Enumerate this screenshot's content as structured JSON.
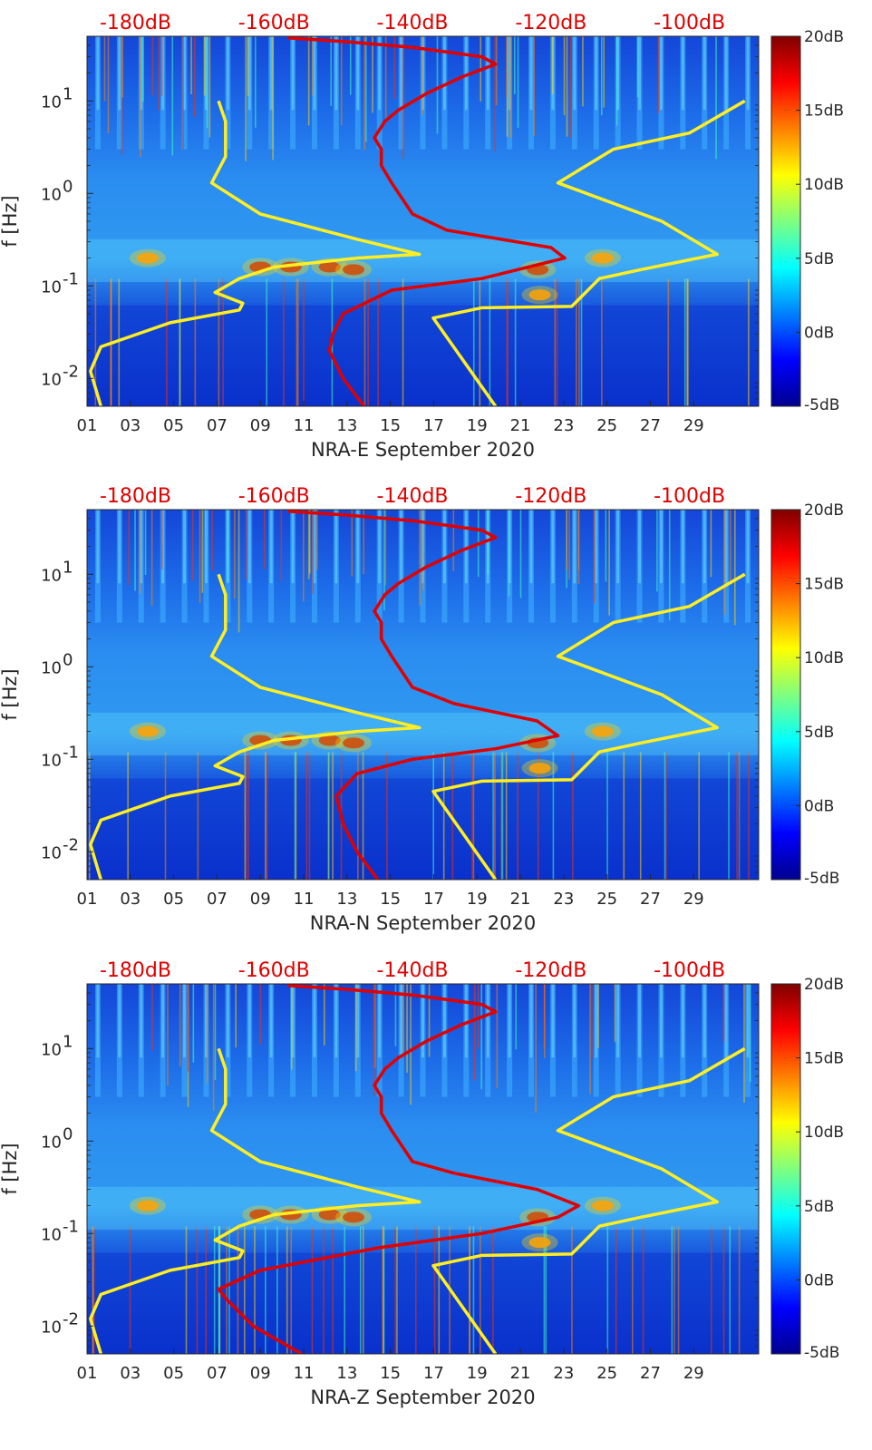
{
  "chart_data": [
    {
      "type": "heatmap",
      "station": "NRA-E",
      "xlabel": "NRA-E September 2020",
      "ylabel": "f [Hz]",
      "xlim": [
        1,
        32
      ],
      "ylim": [
        0.005,
        50
      ],
      "x_ticks": [
        1,
        3,
        5,
        7,
        9,
        11,
        13,
        15,
        17,
        19,
        21,
        23,
        25,
        27,
        29
      ],
      "x_tick_labels": [
        "01",
        "03",
        "05",
        "07",
        "09",
        "11",
        "13",
        "15",
        "17",
        "19",
        "21",
        "23",
        "25",
        "27",
        "29"
      ],
      "y_ticks": [
        0.01,
        0.1,
        1,
        10
      ],
      "y_tick_labels": [
        {
          "base": "10",
          "exp": "-2"
        },
        {
          "base": "10",
          "exp": "-1"
        },
        {
          "base": "10",
          "exp": "0"
        },
        {
          "base": "10",
          "exp": "1"
        }
      ],
      "top_axis_labels": [
        "-180dB",
        "-160dB",
        "-140dB",
        "-120dB",
        "-100dB"
      ],
      "top_axis_values": [
        -180,
        -160,
        -140,
        -120,
        -100
      ],
      "top_axis_range": [
        -187,
        -90
      ],
      "colorbar": {
        "labels": [
          "20dB",
          "15dB",
          "10dB",
          "5dB",
          "0dB",
          "-5dB"
        ],
        "values": [
          20,
          15,
          10,
          5,
          0,
          -5
        ],
        "range": [
          -5,
          20
        ]
      },
      "series": [
        {
          "name": "noise model low (yellow)",
          "color": "#ffee22",
          "points": [
            [
              -185,
              0.005
            ],
            [
              -186.5,
              0.012
            ],
            [
              -185,
              0.022
            ],
            [
              -175,
              0.04
            ],
            [
              -165,
              0.055
            ],
            [
              -164.5,
              0.065
            ],
            [
              -168.5,
              0.085
            ],
            [
              -165,
              0.12
            ],
            [
              -160,
              0.16
            ],
            [
              -148,
              0.2
            ],
            [
              -139,
              0.22
            ],
            [
              -148,
              0.32
            ],
            [
              -162,
              0.6
            ],
            [
              -169,
              1.3
            ],
            [
              -167,
              2.5
            ],
            [
              -167,
              6
            ],
            [
              -168,
              10
            ]
          ]
        },
        {
          "name": "noise model high (yellow)",
          "color": "#ffee22",
          "points": [
            [
              -128,
              0.005
            ],
            [
              -137,
              0.045
            ],
            [
              -130,
              0.058
            ],
            [
              -117,
              0.06
            ],
            [
              -113,
              0.12
            ],
            [
              -107,
              0.15
            ],
            [
              -96,
              0.22
            ],
            [
              -104,
              0.5
            ],
            [
              -119,
              1.3
            ],
            [
              -111,
              3
            ],
            [
              -100,
              4.5
            ],
            [
              -92,
              10
            ]
          ]
        },
        {
          "name": "median PSD (red)",
          "color": "#e00000",
          "points": [
            [
              -147,
              0.005
            ],
            [
              -150,
              0.01
            ],
            [
              -152,
              0.02
            ],
            [
              -151.5,
              0.03
            ],
            [
              -150,
              0.05
            ],
            [
              -143,
              0.09
            ],
            [
              -130,
              0.12
            ],
            [
              -118,
              0.2
            ],
            [
              -120,
              0.26
            ],
            [
              -135,
              0.4
            ],
            [
              -140,
              0.6
            ],
            [
              -143,
              1.3
            ],
            [
              -144.5,
              2
            ],
            [
              -144.5,
              3
            ],
            [
              -145.5,
              4
            ],
            [
              -144,
              6
            ],
            [
              -142,
              8
            ],
            [
              -138,
              12
            ],
            [
              -133,
              18
            ],
            [
              -128,
              25
            ],
            [
              -130,
              30
            ],
            [
              -134,
              33
            ],
            [
              -140,
              38
            ],
            [
              -150,
              44
            ],
            [
              -158,
              48
            ]
          ]
        }
      ]
    },
    {
      "type": "heatmap",
      "station": "NRA-N",
      "xlabel": "NRA-N September 2020",
      "ylabel": "f [Hz]",
      "xlim": [
        1,
        32
      ],
      "ylim": [
        0.005,
        50
      ],
      "x_ticks": [
        1,
        3,
        5,
        7,
        9,
        11,
        13,
        15,
        17,
        19,
        21,
        23,
        25,
        27,
        29
      ],
      "x_tick_labels": [
        "01",
        "03",
        "05",
        "07",
        "09",
        "11",
        "13",
        "15",
        "17",
        "19",
        "21",
        "23",
        "25",
        "27",
        "29"
      ],
      "y_ticks": [
        0.01,
        0.1,
        1,
        10
      ],
      "y_tick_labels": [
        {
          "base": "10",
          "exp": "-2"
        },
        {
          "base": "10",
          "exp": "-1"
        },
        {
          "base": "10",
          "exp": "0"
        },
        {
          "base": "10",
          "exp": "1"
        }
      ],
      "top_axis_labels": [
        "-180dB",
        "-160dB",
        "-140dB",
        "-120dB",
        "-100dB"
      ],
      "top_axis_values": [
        -180,
        -160,
        -140,
        -120,
        -100
      ],
      "top_axis_range": [
        -187,
        -90
      ],
      "colorbar": {
        "labels": [
          "20dB",
          "15dB",
          "10dB",
          "5dB",
          "0dB",
          "-5dB"
        ],
        "values": [
          20,
          15,
          10,
          5,
          0,
          -5
        ],
        "range": [
          -5,
          20
        ]
      },
      "series": [
        {
          "name": "noise model low (yellow)",
          "color": "#ffee22",
          "points": [
            [
              -185,
              0.005
            ],
            [
              -186.5,
              0.012
            ],
            [
              -185,
              0.022
            ],
            [
              -175,
              0.04
            ],
            [
              -165,
              0.055
            ],
            [
              -164.5,
              0.065
            ],
            [
              -168.5,
              0.085
            ],
            [
              -165,
              0.12
            ],
            [
              -160,
              0.16
            ],
            [
              -148,
              0.2
            ],
            [
              -139,
              0.22
            ],
            [
              -148,
              0.32
            ],
            [
              -162,
              0.6
            ],
            [
              -169,
              1.3
            ],
            [
              -167,
              2.5
            ],
            [
              -167,
              6
            ],
            [
              -168,
              10
            ]
          ]
        },
        {
          "name": "noise model high (yellow)",
          "color": "#ffee22",
          "points": [
            [
              -128,
              0.005
            ],
            [
              -137,
              0.045
            ],
            [
              -130,
              0.058
            ],
            [
              -117,
              0.06
            ],
            [
              -113,
              0.12
            ],
            [
              -107,
              0.15
            ],
            [
              -96,
              0.22
            ],
            [
              -104,
              0.5
            ],
            [
              -119,
              1.3
            ],
            [
              -111,
              3
            ],
            [
              -100,
              4.5
            ],
            [
              -92,
              10
            ]
          ]
        },
        {
          "name": "median PSD (red)",
          "color": "#e00000",
          "points": [
            [
              -145,
              0.005
            ],
            [
              -148,
              0.01
            ],
            [
              -150,
              0.02
            ],
            [
              -151,
              0.04
            ],
            [
              -148,
              0.07
            ],
            [
              -140,
              0.1
            ],
            [
              -128,
              0.13
            ],
            [
              -119,
              0.18
            ],
            [
              -122,
              0.26
            ],
            [
              -134,
              0.4
            ],
            [
              -140,
              0.6
            ],
            [
              -143,
              1.3
            ],
            [
              -144.5,
              2
            ],
            [
              -144.5,
              3
            ],
            [
              -145.5,
              4
            ],
            [
              -144,
              6
            ],
            [
              -142,
              8
            ],
            [
              -138,
              12
            ],
            [
              -133,
              18
            ],
            [
              -128,
              25
            ],
            [
              -130,
              30
            ],
            [
              -134,
              33
            ],
            [
              -140,
              38
            ],
            [
              -150,
              44
            ],
            [
              -158,
              48
            ]
          ]
        }
      ]
    },
    {
      "type": "heatmap",
      "station": "NRA-Z",
      "xlabel": "NRA-Z September 2020",
      "ylabel": "f [Hz]",
      "xlim": [
        1,
        32
      ],
      "ylim": [
        0.005,
        50
      ],
      "x_ticks": [
        1,
        3,
        5,
        7,
        9,
        11,
        13,
        15,
        17,
        19,
        21,
        23,
        25,
        27,
        29
      ],
      "x_tick_labels": [
        "01",
        "03",
        "05",
        "07",
        "09",
        "11",
        "13",
        "15",
        "17",
        "19",
        "21",
        "23",
        "25",
        "27",
        "29"
      ],
      "y_ticks": [
        0.01,
        0.1,
        1,
        10
      ],
      "y_tick_labels": [
        {
          "base": "10",
          "exp": "-2"
        },
        {
          "base": "10",
          "exp": "-1"
        },
        {
          "base": "10",
          "exp": "0"
        },
        {
          "base": "10",
          "exp": "1"
        }
      ],
      "top_axis_labels": [
        "-180dB",
        "-160dB",
        "-140dB",
        "-120dB",
        "-100dB"
      ],
      "top_axis_values": [
        -180,
        -160,
        -140,
        -120,
        -100
      ],
      "top_axis_range": [
        -187,
        -90
      ],
      "colorbar": {
        "labels": [
          "20dB",
          "15dB",
          "10dB",
          "5dB",
          "0dB",
          "-5dB"
        ],
        "values": [
          20,
          15,
          10,
          5,
          0,
          -5
        ],
        "range": [
          -5,
          20
        ]
      },
      "series": [
        {
          "name": "noise model low (yellow)",
          "color": "#ffee22",
          "points": [
            [
              -185,
              0.005
            ],
            [
              -186.5,
              0.012
            ],
            [
              -185,
              0.022
            ],
            [
              -175,
              0.04
            ],
            [
              -165,
              0.055
            ],
            [
              -164.5,
              0.065
            ],
            [
              -168.5,
              0.085
            ],
            [
              -165,
              0.12
            ],
            [
              -160,
              0.16
            ],
            [
              -148,
              0.2
            ],
            [
              -139,
              0.22
            ],
            [
              -148,
              0.32
            ],
            [
              -162,
              0.6
            ],
            [
              -169,
              1.3
            ],
            [
              -167,
              2.5
            ],
            [
              -167,
              6
            ],
            [
              -168,
              10
            ]
          ]
        },
        {
          "name": "noise model high (yellow)",
          "color": "#ffee22",
          "points": [
            [
              -128,
              0.005
            ],
            [
              -137,
              0.045
            ],
            [
              -130,
              0.058
            ],
            [
              -117,
              0.06
            ],
            [
              -113,
              0.12
            ],
            [
              -107,
              0.15
            ],
            [
              -96,
              0.22
            ],
            [
              -104,
              0.5
            ],
            [
              -119,
              1.3
            ],
            [
              -111,
              3
            ],
            [
              -100,
              4.5
            ],
            [
              -92,
              10
            ]
          ]
        },
        {
          "name": "median PSD (red)",
          "color": "#e00000",
          "points": [
            [
              -156,
              0.005
            ],
            [
              -163,
              0.01
            ],
            [
              -167,
              0.02
            ],
            [
              -168,
              0.025
            ],
            [
              -162,
              0.04
            ],
            [
              -145,
              0.07
            ],
            [
              -130,
              0.1
            ],
            [
              -119,
              0.15
            ],
            [
              -116,
              0.2
            ],
            [
              -122,
              0.3
            ],
            [
              -134,
              0.45
            ],
            [
              -140,
              0.6
            ],
            [
              -143,
              1.3
            ],
            [
              -144.5,
              2
            ],
            [
              -144.5,
              3
            ],
            [
              -145.5,
              4
            ],
            [
              -144,
              6
            ],
            [
              -142,
              8
            ],
            [
              -138,
              12
            ],
            [
              -133,
              18
            ],
            [
              -128,
              25
            ],
            [
              -130,
              30
            ],
            [
              -134,
              33
            ],
            [
              -140,
              38
            ],
            [
              -150,
              44
            ],
            [
              -158,
              48
            ]
          ]
        }
      ]
    }
  ]
}
